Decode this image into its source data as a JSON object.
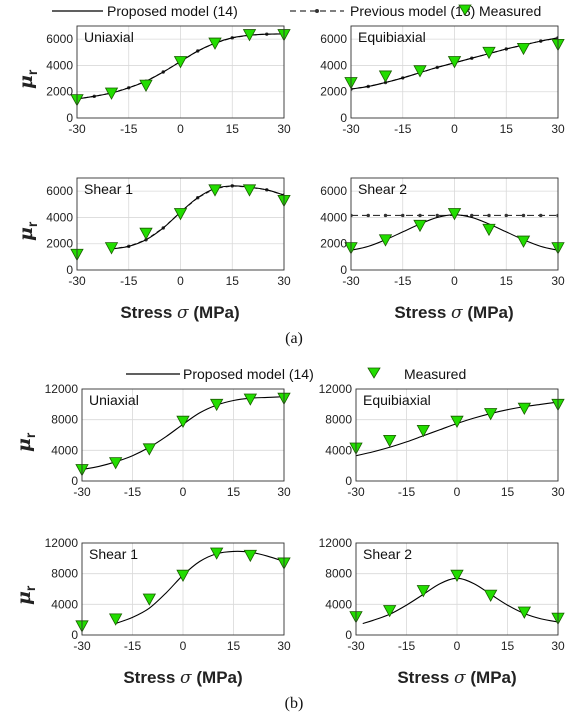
{
  "figure_a": {
    "caption": "(a)",
    "legend": {
      "proposed": "Proposed model (14)",
      "previous": "Previous model (13)",
      "measured": "Measured"
    },
    "xlabel_text": "Stress",
    "xlabel_symbol": "σ",
    "xlabel_unit": "(MPa)",
    "ylabel_symbol": "μ",
    "ylabel_sub": "r"
  },
  "figure_b": {
    "caption": "(b)",
    "legend": {
      "proposed": "Proposed model (14)",
      "measured": "Measured"
    },
    "xlabel_text": "Stress",
    "xlabel_symbol": "σ",
    "xlabel_unit": "(MPa)",
    "ylabel_symbol": "μ",
    "ylabel_sub": "r"
  },
  "colors": {
    "measured_fill": "#22dd00",
    "measured_edge": "#1a5c00",
    "line": "#000000",
    "previous": "#333333",
    "grid": "#d9d9d9"
  },
  "chart_data": [
    {
      "id": "a-uniaxial",
      "figure": "a",
      "type": "line",
      "title": "Uniaxial",
      "xlim": [
        -30,
        30
      ],
      "ylim": [
        0,
        7000
      ],
      "xticks": [
        -30,
        -15,
        0,
        15,
        30
      ],
      "yticks": [
        0,
        2000,
        4000,
        6000
      ],
      "grid": true,
      "measured": {
        "x": [
          -30,
          -20,
          -10,
          0,
          10,
          20,
          30
        ],
        "y": [
          1400,
          1900,
          2500,
          4300,
          5700,
          6350,
          6350
        ]
      },
      "proposed": {
        "x": [
          -30,
          -25,
          -20,
          -15,
          -10,
          -5,
          0,
          5,
          10,
          15,
          20,
          25,
          30
        ],
        "y": [
          1450,
          1650,
          1900,
          2300,
          2800,
          3500,
          4300,
          5100,
          5700,
          6100,
          6300,
          6380,
          6400
        ]
      },
      "previous": {
        "x": [
          -30,
          -25,
          -20,
          -15,
          -10,
          -5,
          0,
          5,
          10,
          15,
          20,
          25,
          30
        ],
        "y": [
          1450,
          1650,
          1900,
          2300,
          2800,
          3500,
          4300,
          5100,
          5700,
          6100,
          6300,
          6380,
          6400
        ]
      }
    },
    {
      "id": "a-equibiaxial",
      "figure": "a",
      "type": "line",
      "title": "Equibiaxial",
      "xlim": [
        -30,
        30
      ],
      "ylim": [
        0,
        7000
      ],
      "xticks": [
        -30,
        -15,
        0,
        15,
        30
      ],
      "yticks": [
        0,
        2000,
        4000,
        6000
      ],
      "grid": true,
      "measured": {
        "x": [
          -30,
          -20,
          -10,
          0,
          10,
          20,
          30
        ],
        "y": [
          2700,
          3200,
          3600,
          4300,
          5000,
          5300,
          5600
        ]
      },
      "proposed": {
        "x": [
          -30,
          -25,
          -20,
          -15,
          -10,
          -5,
          0,
          5,
          10,
          15,
          20,
          25,
          30
        ],
        "y": [
          2200,
          2400,
          2700,
          3050,
          3450,
          3850,
          4200,
          4550,
          4900,
          5250,
          5550,
          5850,
          6100
        ]
      },
      "previous": {
        "x": [
          -30,
          -25,
          -20,
          -15,
          -10,
          -5,
          0,
          5,
          10,
          15,
          20,
          25,
          30
        ],
        "y": [
          2200,
          2400,
          2700,
          3050,
          3450,
          3850,
          4200,
          4550,
          4900,
          5250,
          5550,
          5850,
          6100
        ]
      }
    },
    {
      "id": "a-shear1",
      "figure": "a",
      "type": "line",
      "title": "Shear 1",
      "xlim": [
        -30,
        30
      ],
      "ylim": [
        0,
        7000
      ],
      "xticks": [
        -30,
        -15,
        0,
        15,
        30
      ],
      "yticks": [
        0,
        2000,
        4000,
        6000
      ],
      "grid": true,
      "measured": {
        "x": [
          -30,
          -20,
          -10,
          0,
          10,
          20,
          30
        ],
        "y": [
          1200,
          1700,
          2800,
          4300,
          6100,
          6100,
          5300
        ]
      },
      "proposed": {
        "x": [
          -20,
          -15,
          -10,
          -5,
          0,
          5,
          10,
          15,
          20,
          25,
          30
        ],
        "y": [
          1600,
          1800,
          2300,
          3200,
          4400,
          5500,
          6200,
          6400,
          6300,
          6100,
          5700
        ]
      },
      "previous": {
        "x": [
          -20,
          -15,
          -10,
          -5,
          0,
          5,
          10,
          15,
          20,
          25,
          30
        ],
        "y": [
          1600,
          1800,
          2300,
          3200,
          4400,
          5500,
          6200,
          6400,
          6300,
          6100,
          5700
        ]
      }
    },
    {
      "id": "a-shear2",
      "figure": "a",
      "type": "line",
      "title": "Shear 2",
      "xlim": [
        -30,
        30
      ],
      "ylim": [
        0,
        7000
      ],
      "xticks": [
        -30,
        -15,
        0,
        15,
        30
      ],
      "yticks": [
        0,
        2000,
        4000,
        6000
      ],
      "grid": true,
      "measured": {
        "x": [
          -30,
          -20,
          -10,
          0,
          10,
          20,
          30
        ],
        "y": [
          1700,
          2300,
          3400,
          4300,
          3100,
          2200,
          1700
        ]
      },
      "proposed": {
        "x": [
          -30,
          -25,
          -20,
          -15,
          -10,
          -5,
          0,
          5,
          10,
          15,
          20,
          25,
          30
        ],
        "y": [
          1500,
          1800,
          2300,
          2900,
          3500,
          4000,
          4200,
          4000,
          3500,
          2900,
          2300,
          1800,
          1500
        ]
      },
      "previous": {
        "x": [
          -30,
          -25,
          -20,
          -15,
          -10,
          -5,
          0,
          5,
          10,
          15,
          20,
          25,
          30
        ],
        "y": [
          4150,
          4150,
          4150,
          4150,
          4150,
          4150,
          4150,
          4150,
          4150,
          4150,
          4150,
          4150,
          4150
        ]
      }
    },
    {
      "id": "b-uniaxial",
      "figure": "b",
      "type": "line",
      "title": "Uniaxial",
      "xlim": [
        -30,
        30
      ],
      "ylim": [
        0,
        12000
      ],
      "xticks": [
        -30,
        -15,
        0,
        15,
        30
      ],
      "yticks": [
        0,
        4000,
        8000,
        12000
      ],
      "grid": true,
      "measured": {
        "x": [
          -30,
          -20,
          -10,
          0,
          10,
          20,
          30
        ],
        "y": [
          1500,
          2400,
          4200,
          7800,
          10000,
          10700,
          10800
        ]
      },
      "proposed": {
        "x": [
          -30,
          -25,
          -20,
          -15,
          -10,
          -5,
          0,
          5,
          10,
          15,
          20,
          25,
          30
        ],
        "y": [
          1500,
          1900,
          2500,
          3300,
          4400,
          5800,
          7400,
          8900,
          9900,
          10500,
          10800,
          10900,
          11000
        ]
      }
    },
    {
      "id": "b-equibiaxial",
      "figure": "b",
      "type": "line",
      "title": "Equibiaxial",
      "xlim": [
        -30,
        30
      ],
      "ylim": [
        0,
        12000
      ],
      "xticks": [
        -30,
        -15,
        0,
        15,
        30
      ],
      "yticks": [
        0,
        4000,
        8000,
        12000
      ],
      "grid": true,
      "measured": {
        "x": [
          -30,
          -20,
          -10,
          0,
          10,
          20,
          30
        ],
        "y": [
          4300,
          5300,
          6600,
          7800,
          8800,
          9500,
          10000
        ]
      },
      "proposed": {
        "x": [
          -30,
          -25,
          -20,
          -15,
          -10,
          -5,
          0,
          5,
          10,
          15,
          20,
          25,
          30
        ],
        "y": [
          3300,
          3800,
          4400,
          5100,
          5900,
          6700,
          7500,
          8200,
          8800,
          9300,
          9700,
          10000,
          10300
        ]
      }
    },
    {
      "id": "b-shear1",
      "figure": "b",
      "type": "line",
      "title": "Shear 1",
      "xlim": [
        -30,
        30
      ],
      "ylim": [
        0,
        12000
      ],
      "xticks": [
        -30,
        -15,
        0,
        15,
        30
      ],
      "yticks": [
        0,
        4000,
        8000,
        12000
      ],
      "grid": true,
      "measured": {
        "x": [
          -30,
          -20,
          -10,
          0,
          10,
          20,
          30
        ],
        "y": [
          1200,
          2100,
          4700,
          7800,
          10700,
          10400,
          9400
        ]
      },
      "proposed": {
        "x": [
          -20,
          -15,
          -10,
          -5,
          0,
          5,
          10,
          15,
          20,
          25,
          30
        ],
        "y": [
          1500,
          2300,
          3500,
          5500,
          7800,
          9600,
          10600,
          10900,
          10800,
          10300,
          9600
        ]
      }
    },
    {
      "id": "b-shear2",
      "figure": "b",
      "type": "line",
      "title": "Shear 2",
      "xlim": [
        -30,
        30
      ],
      "ylim": [
        0,
        12000
      ],
      "xticks": [
        -30,
        -15,
        0,
        15,
        30
      ],
      "yticks": [
        0,
        4000,
        8000,
        12000
      ],
      "grid": true,
      "measured": {
        "x": [
          -30,
          -20,
          -10,
          0,
          10,
          20,
          30
        ],
        "y": [
          2400,
          3200,
          5800,
          7800,
          5200,
          3000,
          2200
        ]
      },
      "proposed": {
        "x": [
          -28,
          -25,
          -20,
          -15,
          -10,
          -5,
          0,
          5,
          10,
          15,
          20,
          25,
          30
        ],
        "y": [
          1500,
          1900,
          2700,
          3900,
          5300,
          6700,
          7400,
          6700,
          5300,
          3900,
          2800,
          2100,
          1700
        ]
      }
    }
  ]
}
